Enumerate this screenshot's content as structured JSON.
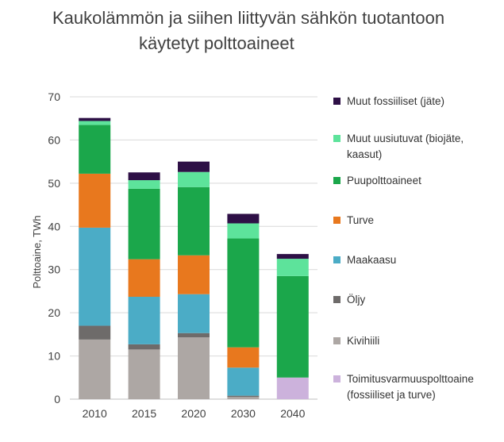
{
  "chart_data": {
    "type": "bar",
    "stacked": true,
    "title_line1": "Kaukolämmön ja siihen liittyvän sähkön tuotantoon",
    "title_line2": "käytetyt polttoaineet",
    "ylabel": "Polttoaine, TWh",
    "ylim": [
      0,
      70
    ],
    "yticks": [
      "0",
      "10",
      "20",
      "30",
      "40",
      "50",
      "60",
      "70"
    ],
    "grid": true,
    "legend_position": "right",
    "categories": [
      "2010",
      "2015",
      "2020",
      "2030",
      "2040"
    ],
    "series": [
      {
        "name": "Kivihiili",
        "color": "#ADA7A4",
        "values": [
          13.8,
          11.5,
          14.3,
          0.5,
          0
        ]
      },
      {
        "name": "Öljy",
        "color": "#6E6B6A",
        "values": [
          3.2,
          1.2,
          1.0,
          0.3,
          0
        ]
      },
      {
        "name": "Toimitusvarmuuspolttoaine (fossiiliset ja turve)",
        "color": "#CCB2DC",
        "values": [
          0,
          0,
          0,
          0,
          5.0
        ]
      },
      {
        "name": "Maakaasu",
        "color": "#4BACC6",
        "values": [
          22.7,
          11.0,
          9.0,
          6.5,
          0
        ]
      },
      {
        "name": "Turve",
        "color": "#E8781E",
        "values": [
          12.5,
          8.7,
          9.0,
          4.7,
          0
        ]
      },
      {
        "name": "Puupolttoaineet",
        "color": "#1BA74B",
        "values": [
          11.3,
          16.3,
          15.8,
          25.2,
          23.5
        ]
      },
      {
        "name": "Muut uusiutuvat (biojäte, kaasut)",
        "color": "#5DE39B",
        "values": [
          0.9,
          2.0,
          3.5,
          3.5,
          4.0
        ]
      },
      {
        "name": "Muut fossiiliset (jäte)",
        "color": "#2E1046",
        "values": [
          0.7,
          1.8,
          2.4,
          2.2,
          1.1
        ]
      }
    ],
    "legend": [
      {
        "label": "Muut fossiiliset (jäte)",
        "color": "#2E1046"
      },
      {
        "label": "Muut uusiutuvat (biojäte, kaasut)",
        "color": "#5DE39B"
      },
      {
        "label": "Puupolttoaineet",
        "color": "#1BA74B"
      },
      {
        "label": "Turve",
        "color": "#E8781E"
      },
      {
        "label": "Maakaasu",
        "color": "#4BACC6"
      },
      {
        "label": "Öljy",
        "color": "#6E6B6A"
      },
      {
        "label": "Kivihiili",
        "color": "#ADA7A4"
      },
      {
        "label": "Toimitusvarmuuspolttoaine (fossiiliset ja turve)",
        "color": "#CCB2DC"
      }
    ]
  }
}
